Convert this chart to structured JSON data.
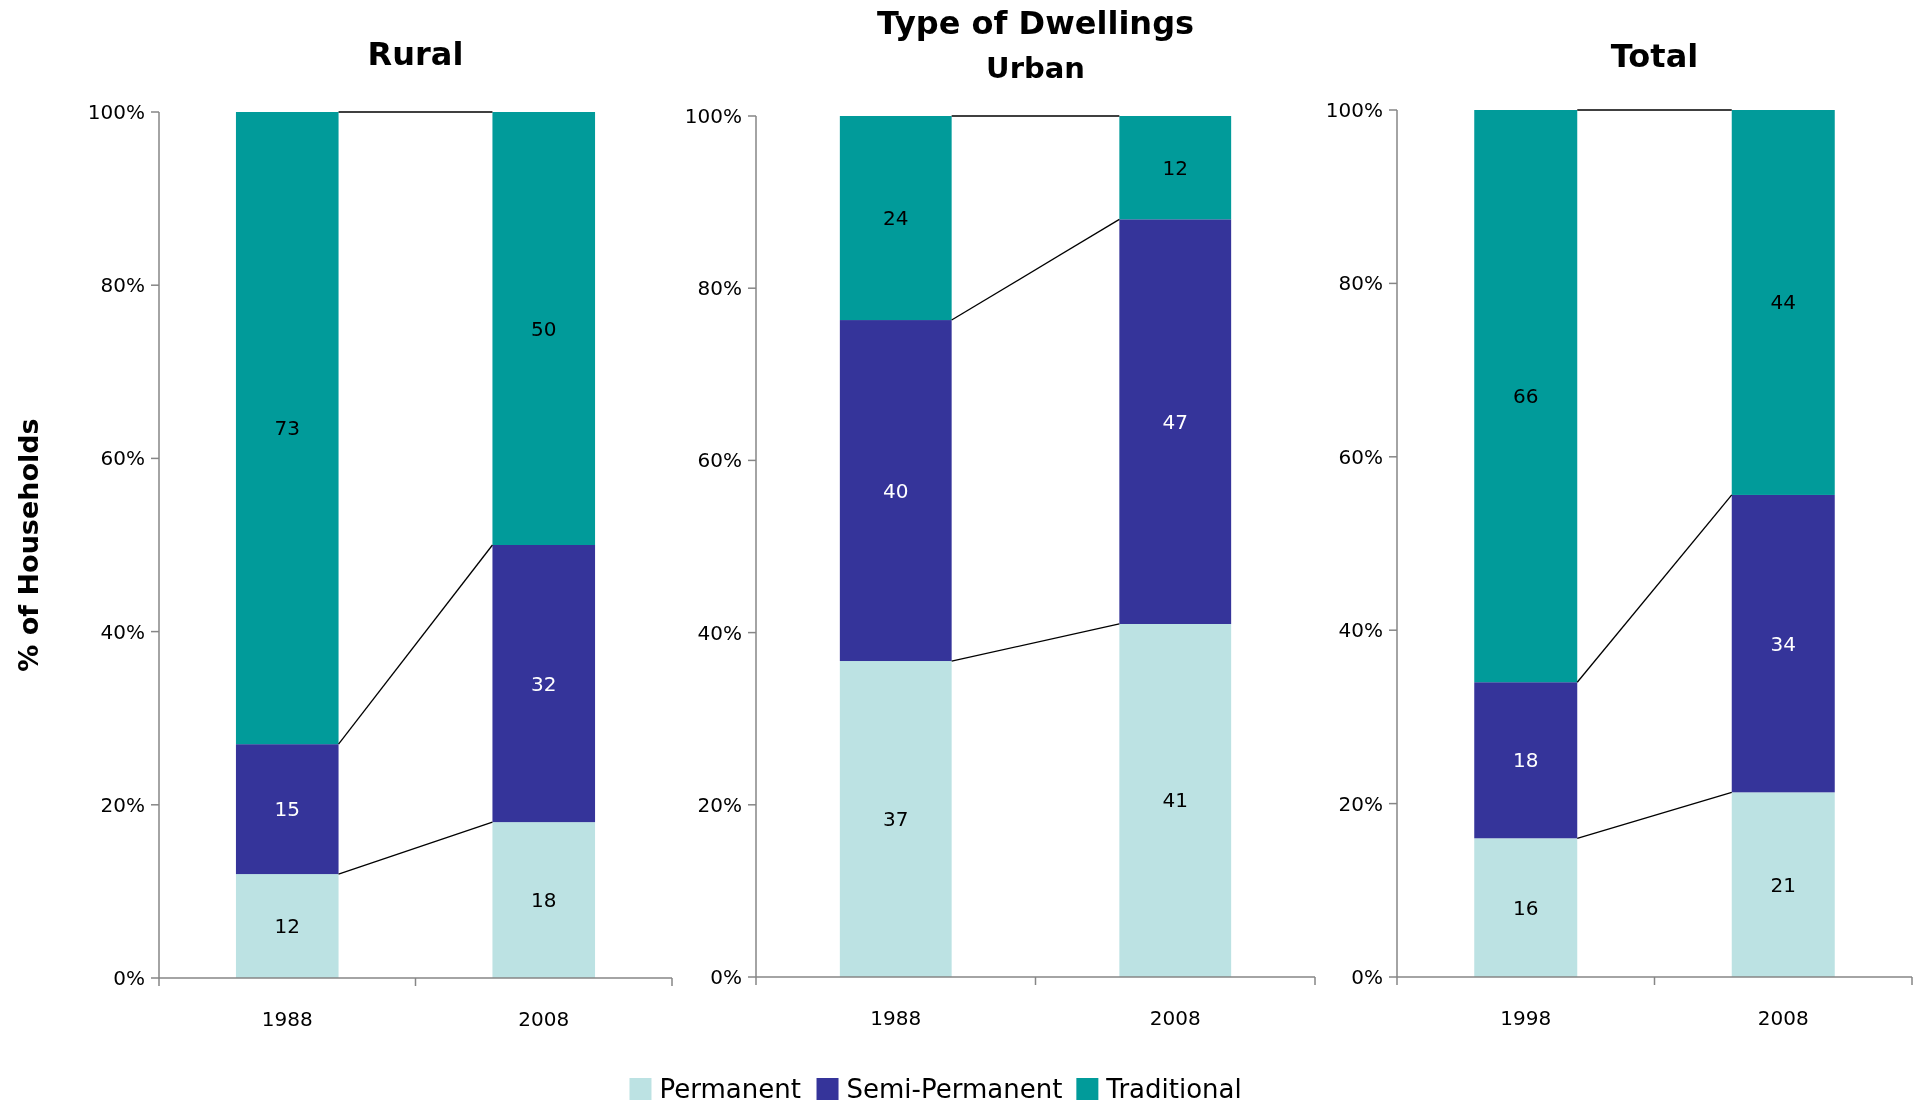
{
  "chart_data": [
    {
      "type": "bar",
      "stacked": true,
      "title": "Rural",
      "ylabel": "% of Households",
      "categories": [
        "1988",
        "2008"
      ],
      "ylim": [
        0,
        100
      ],
      "yticks": [
        {
          "value": 0,
          "label": "0%"
        },
        {
          "value": 20,
          "label": "20%"
        },
        {
          "value": 40,
          "label": "40%"
        },
        {
          "value": 60,
          "label": "60%"
        },
        {
          "value": 80,
          "label": "80%"
        },
        {
          "value": 100,
          "label": "100%"
        }
      ],
      "legend": "bottom",
      "series": [
        {
          "name": "Permanent",
          "color": "#bce2e3",
          "values": [
            12,
            18
          ],
          "value_labels": [
            "12",
            "18"
          ]
        },
        {
          "name": "Semi-Permanent",
          "color": "#35349a",
          "values": [
            15,
            32
          ],
          "value_labels": [
            "15",
            "32"
          ]
        },
        {
          "name": "Traditional",
          "color": "#019b9a",
          "values": [
            73,
            50
          ],
          "value_labels": [
            "73",
            "50"
          ]
        }
      ]
    },
    {
      "type": "bar",
      "stacked": true,
      "title": "Type of Dwellings",
      "subtitle": "Urban",
      "categories": [
        "1988",
        "2008"
      ],
      "ylim": [
        0,
        100
      ],
      "yticks": [
        {
          "value": 0,
          "label": "0%"
        },
        {
          "value": 20,
          "label": "20%"
        },
        {
          "value": 40,
          "label": "40%"
        },
        {
          "value": 60,
          "label": "60%"
        },
        {
          "value": 80,
          "label": "80%"
        },
        {
          "value": 100,
          "label": "100%"
        }
      ],
      "series": [
        {
          "color": "#bce2e3",
          "values": [
            36.7,
            41
          ],
          "value_labels": [
            "37",
            "41"
          ]
        },
        {
          "color": "#35349a",
          "values": [
            39.6,
            47
          ],
          "value_labels": [
            "40",
            "47"
          ]
        },
        {
          "color": "#019b9a",
          "values": [
            23.7,
            12
          ],
          "value_labels": [
            "24",
            "12"
          ]
        }
      ]
    },
    {
      "type": "bar",
      "stacked": true,
      "title": "Total",
      "categories": [
        "1998",
        "2008"
      ],
      "ylim": [
        0,
        100
      ],
      "yticks": [
        {
          "value": 0,
          "label": "0%"
        },
        {
          "value": 20,
          "label": "20%"
        },
        {
          "value": 40,
          "label": "40%"
        },
        {
          "value": 60,
          "label": "60%"
        },
        {
          "value": 80,
          "label": "80%"
        },
        {
          "value": 100,
          "label": "100%"
        }
      ],
      "series": [
        {
          "color": "#bce2e3",
          "values": [
            16,
            21.3
          ],
          "value_labels": [
            "16",
            "21"
          ]
        },
        {
          "color": "#35349a",
          "values": [
            18,
            34.3
          ],
          "value_labels": [
            "18",
            "34"
          ]
        },
        {
          "color": "#019b9a",
          "values": [
            66,
            44.4
          ],
          "value_labels": [
            "66",
            "44"
          ]
        }
      ]
    }
  ]
}
